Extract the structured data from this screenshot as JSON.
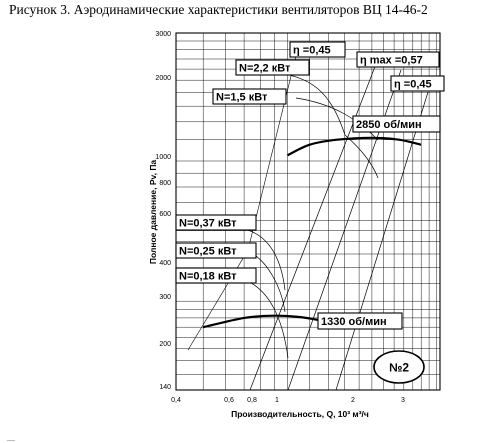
{
  "caption": "Рисунок 3. Аэродинамические характеристики вентиляторов ВЦ 14-46-2",
  "chart_data": {
    "type": "line",
    "title": "Рисунок 3. Аэродинамические характеристики вентиляторов ВЦ 14-46-2",
    "xlabel": "Производительность, Q, 10³ м³/ч",
    "ylabel": "Полное давление, Pv, Па",
    "xscale": "log",
    "yscale": "log",
    "xlim": [
      0.4,
      3.5
    ],
    "ylim": [
      140,
      3000
    ],
    "x_ticks": [
      "0,4",
      "0,6",
      "0,8",
      "1",
      "2",
      "3"
    ],
    "y_ticks": [
      "3000",
      "2000",
      "1000",
      "800",
      "600",
      "400",
      "300",
      "200",
      "140"
    ],
    "grid": true,
    "badge": "№2",
    "series": [
      {
        "name": "2850 об/мин",
        "x": [
          1.0,
          1.2,
          1.5,
          2.0,
          2.5,
          3.0
        ],
        "y": [
          1050,
          1150,
          1200,
          1220,
          1200,
          1150
        ]
      },
      {
        "name": "1330 об/мин",
        "x": [
          0.5,
          0.7,
          0.9,
          1.1,
          1.3
        ],
        "y": [
          240,
          260,
          265,
          262,
          255
        ]
      }
    ],
    "power_labels": [
      "N=2,2 кВт",
      "N=1,5 кВт",
      "N=0,37 кВт",
      "N=0,25 кВт",
      "N=0,18 кВт"
    ],
    "efficiency_labels": [
      "η =0,45",
      "η max =0,57",
      "η =0,45"
    ]
  }
}
